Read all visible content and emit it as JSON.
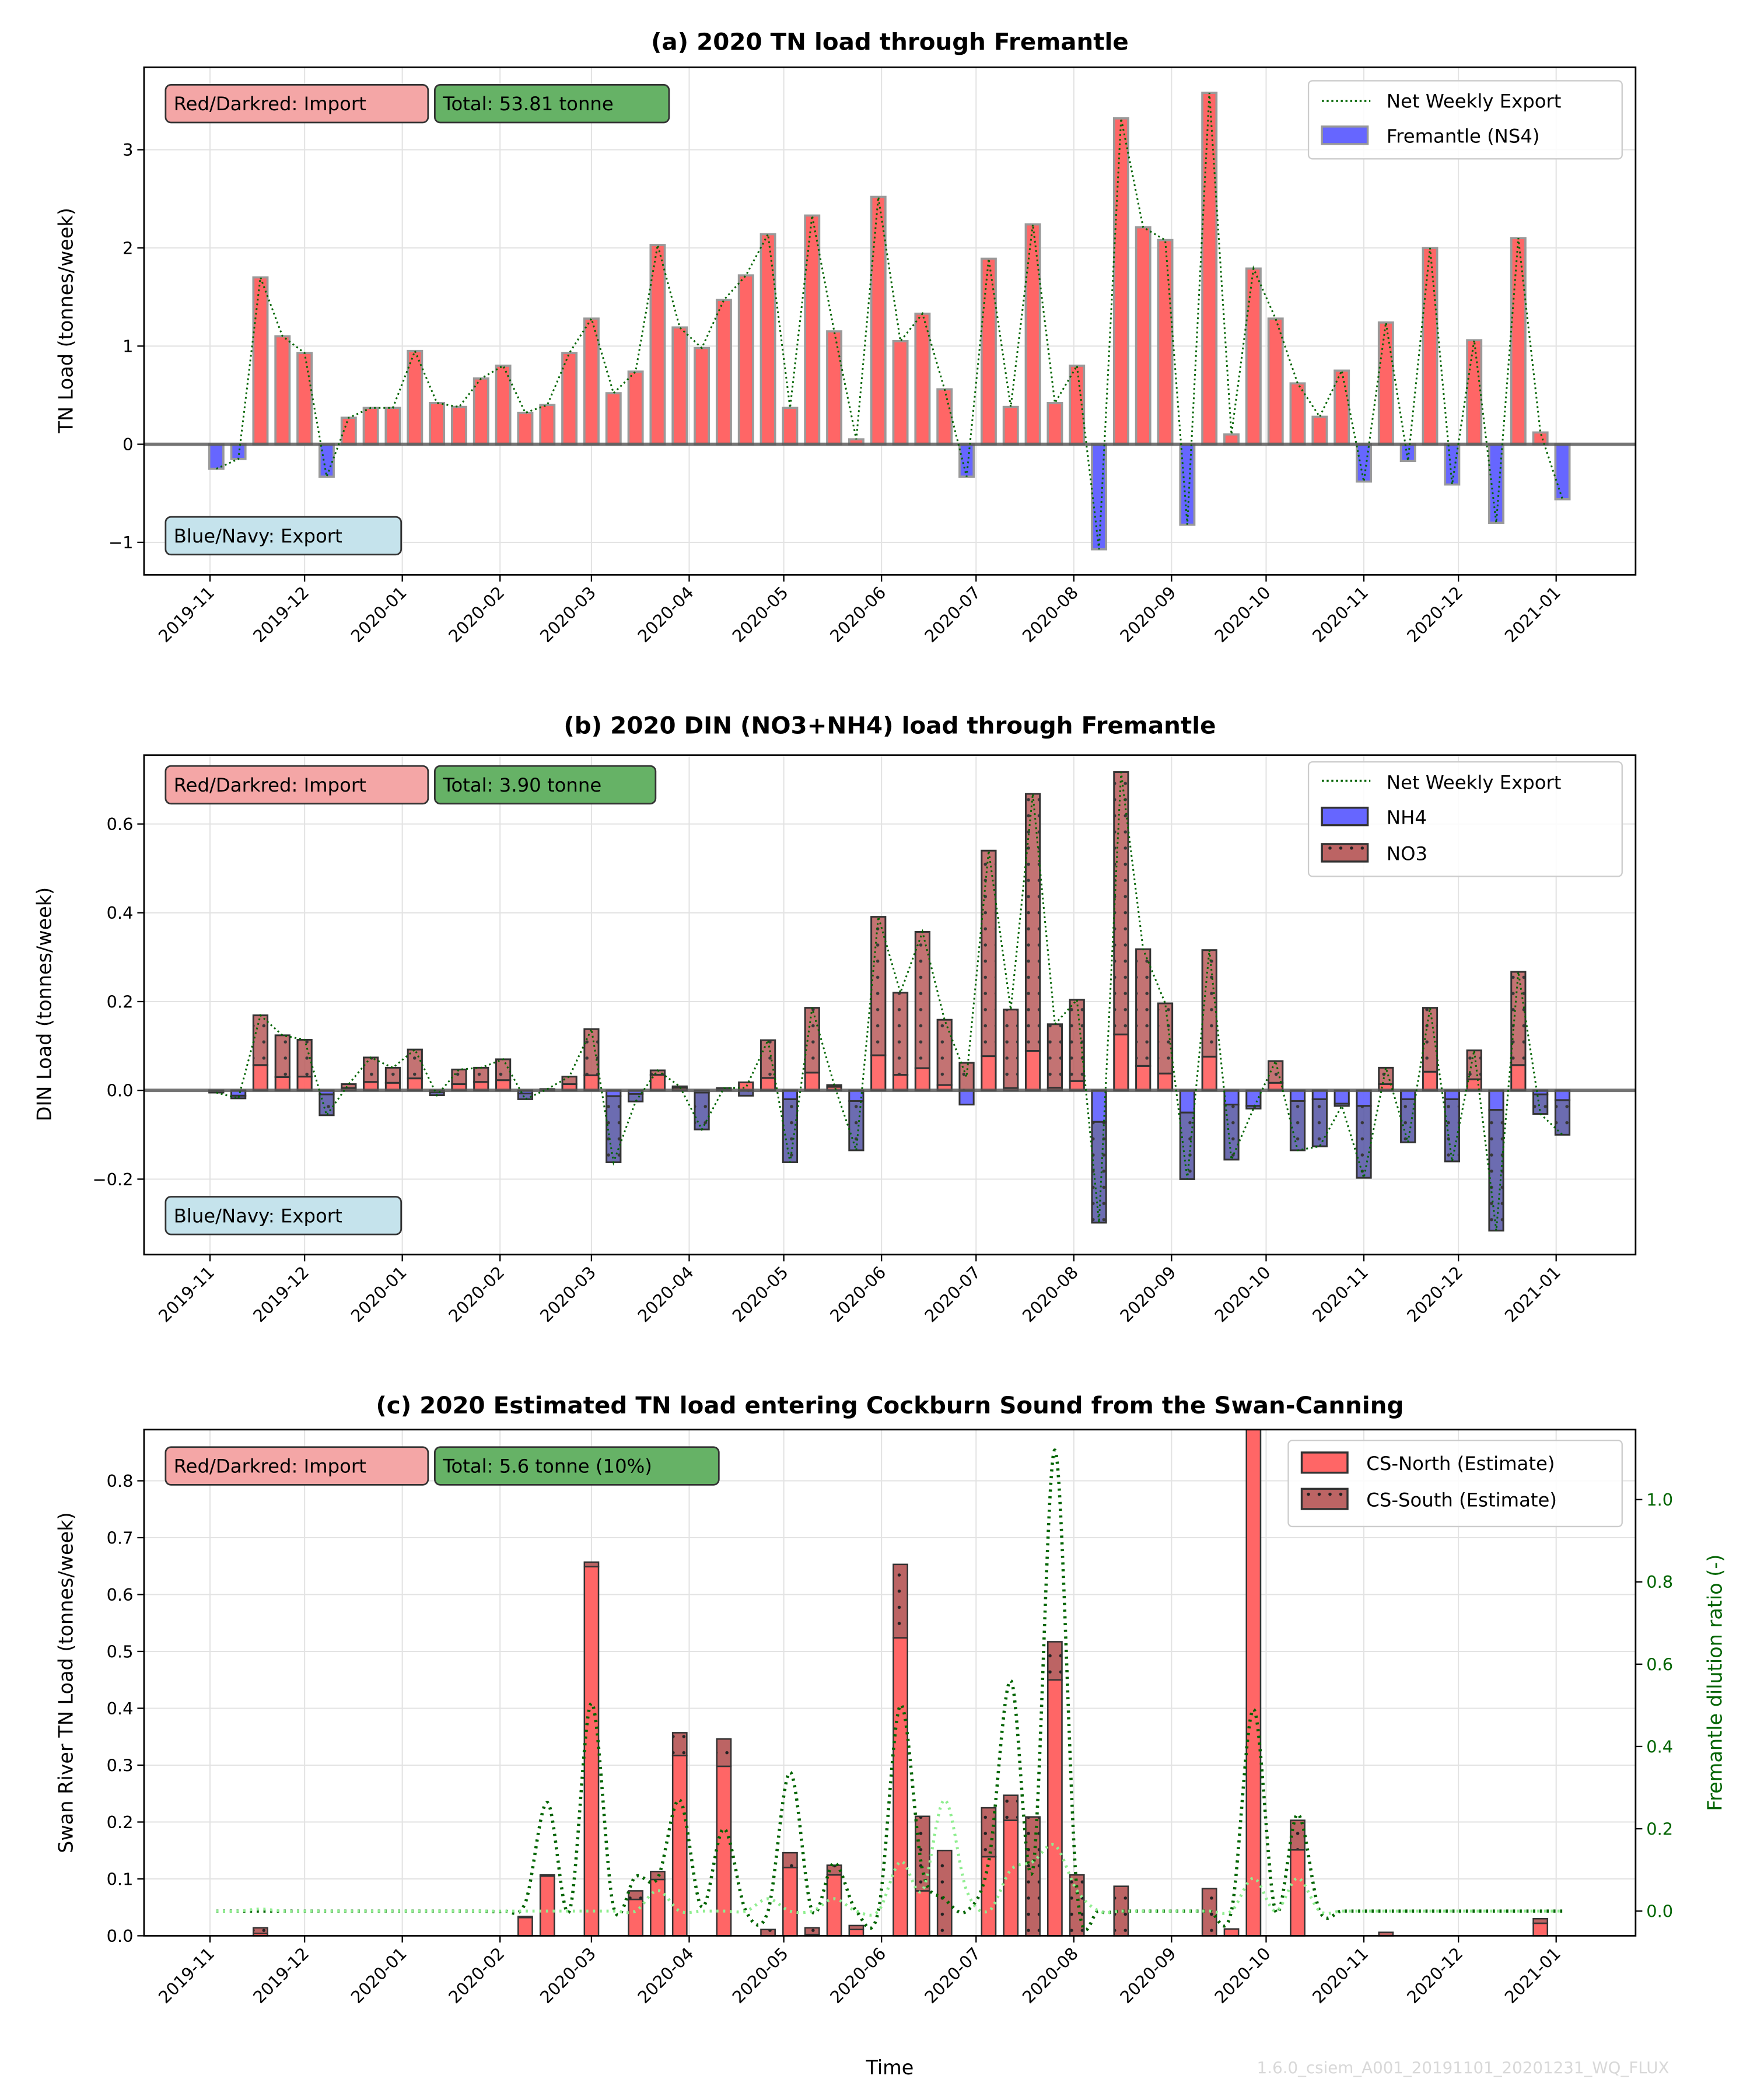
{
  "weeks": [
    "2019-11-03",
    "2019-11-10",
    "2019-11-17",
    "2019-11-24",
    "2019-12-01",
    "2019-12-08",
    "2019-12-15",
    "2019-12-22",
    "2019-12-29",
    "2020-01-05",
    "2020-01-12",
    "2020-01-19",
    "2020-01-26",
    "2020-02-02",
    "2020-02-09",
    "2020-02-16",
    "2020-02-23",
    "2020-03-01",
    "2020-03-08",
    "2020-03-15",
    "2020-03-22",
    "2020-03-29",
    "2020-04-05",
    "2020-04-12",
    "2020-04-19",
    "2020-04-26",
    "2020-05-03",
    "2020-05-10",
    "2020-05-17",
    "2020-05-24",
    "2020-05-31",
    "2020-06-07",
    "2020-06-14",
    "2020-06-21",
    "2020-06-28",
    "2020-07-05",
    "2020-07-12",
    "2020-07-19",
    "2020-07-26",
    "2020-08-02",
    "2020-08-09",
    "2020-08-16",
    "2020-08-23",
    "2020-08-30",
    "2020-09-06",
    "2020-09-13",
    "2020-09-20",
    "2020-09-27",
    "2020-10-04",
    "2020-10-11",
    "2020-10-18",
    "2020-10-25",
    "2020-11-01",
    "2020-11-08",
    "2020-11-15",
    "2020-11-22",
    "2020-11-29",
    "2020-12-06",
    "2020-12-13",
    "2020-12-20",
    "2020-12-27",
    "2021-01-03"
  ],
  "x_ticks": [
    "2019-11",
    "2019-12",
    "2020-01",
    "2020-02",
    "2020-03",
    "2020-04",
    "2020-05",
    "2020-06",
    "2020-07",
    "2020-08",
    "2020-09",
    "2020-10",
    "2020-11",
    "2020-12",
    "2021-01"
  ],
  "xlim": [
    "2019-10-11",
    "2021-01-28"
  ],
  "colors": {
    "import": "#ff6666",
    "export": "#6666ff",
    "no3_import": "#bc6464",
    "no3_export": "#5c5ca8",
    "line": "#006400",
    "light_line": "#90ee90",
    "import_box": "#f4a6a6",
    "total_box": "#66b266",
    "export_box": "#c5e3ec"
  },
  "chart_data": [
    {
      "type": "bar",
      "title": "(a) 2020 TN load through Fremantle",
      "ylabel": "TN Load (tonnes/week)",
      "ylim": [
        -1.33,
        3.84
      ],
      "yticks": [
        -1,
        0,
        1,
        2,
        3
      ],
      "ytick_labels": [
        "−1",
        "0",
        "1",
        "2",
        "3"
      ],
      "grid": true,
      "legend_position": "top-right",
      "annotations": {
        "import": "Red/Darkred: Import",
        "total": "Total: 53.81 tonne",
        "export": "Blue/Navy: Export"
      },
      "line_name": "Net Weekly Export",
      "series": [
        {
          "name": "Fremantle (NS4)",
          "values": [
            -0.25,
            -0.15,
            1.7,
            1.1,
            0.93,
            -0.33,
            0.27,
            0.37,
            0.37,
            0.95,
            0.42,
            0.38,
            0.67,
            0.8,
            0.32,
            0.4,
            0.93,
            1.28,
            0.52,
            0.74,
            2.03,
            1.19,
            0.98,
            1.47,
            1.72,
            2.14,
            0.37,
            2.33,
            1.15,
            0.05,
            2.52,
            1.05,
            1.33,
            0.56,
            -0.33,
            1.89,
            0.38,
            2.24,
            0.42,
            0.8,
            -1.07,
            3.32,
            2.21,
            2.08,
            -0.82,
            3.58,
            0.1,
            1.79,
            1.28,
            0.62,
            0.28,
            0.75,
            -0.38,
            1.24,
            -0.17,
            2.0,
            -0.41,
            1.06,
            -0.8,
            2.1,
            0.12,
            -0.56
          ]
        }
      ]
    },
    {
      "type": "bar",
      "stacked": true,
      "title": "(b) 2020 DIN (NO3+NH4) load through Fremantle",
      "ylabel": "DIN Load (tonnes/week)",
      "ylim": [
        -0.37,
        0.755
      ],
      "yticks": [
        -0.2,
        0,
        0.2,
        0.4,
        0.6
      ],
      "ytick_labels": [
        "−0.2",
        "0.0",
        "0.2",
        "0.4",
        "0.6"
      ],
      "grid": true,
      "legend_position": "top-right",
      "annotations": {
        "import": "Red/Darkred: Import",
        "total": "Total: 3.90 tonne",
        "export": "Blue/Navy: Export"
      },
      "line_name": "Net Weekly Export",
      "series": [
        {
          "name": "NH4",
          "values": [
            -0.003,
            -0.012,
            0.057,
            0.03,
            0.031,
            -0.009,
            0.005,
            0.019,
            0.017,
            0.027,
            -0.004,
            0.014,
            0.019,
            0.023,
            -0.007,
            0.001,
            0.014,
            0.034,
            -0.013,
            -0.008,
            0.035,
            0.006,
            -0.005,
            0.003,
            0.018,
            0.028,
            -0.02,
            0.04,
            0.008,
            -0.024,
            0.079,
            0.035,
            0.05,
            0.012,
            -0.032,
            0.077,
            0.005,
            0.089,
            0.006,
            0.021,
            -0.071,
            0.126,
            0.055,
            0.038,
            -0.05,
            0.076,
            -0.032,
            -0.035,
            0.017,
            -0.024,
            -0.02,
            -0.03,
            -0.035,
            0.014,
            -0.02,
            0.042,
            -0.02,
            0.025,
            -0.044,
            0.057,
            -0.009,
            -0.022
          ]
        },
        {
          "name": "NO3",
          "values": [
            -0.002,
            -0.006,
            0.112,
            0.094,
            0.083,
            -0.047,
            0.009,
            0.055,
            0.034,
            0.065,
            -0.007,
            0.033,
            0.032,
            0.047,
            -0.013,
            0.002,
            0.017,
            0.104,
            -0.149,
            -0.017,
            0.01,
            0.003,
            -0.083,
            0.002,
            -0.012,
            0.085,
            -0.142,
            0.146,
            0.004,
            -0.111,
            0.312,
            0.185,
            0.307,
            0.147,
            0.062,
            0.463,
            0.177,
            0.579,
            0.143,
            0.183,
            -0.227,
            0.591,
            0.263,
            0.158,
            -0.15,
            0.24,
            -0.124,
            -0.006,
            0.049,
            -0.111,
            -0.106,
            -0.005,
            -0.162,
            0.037,
            -0.097,
            0.144,
            -0.14,
            0.065,
            -0.272,
            0.21,
            -0.044,
            -0.078
          ]
        }
      ]
    },
    {
      "type": "bar",
      "stacked": true,
      "title": "(c) 2020 Estimated TN load entering Cockburn Sound from the Swan-Canning",
      "xlabel": "Time",
      "ylabel": "Swan River TN Load (tonnes/week)",
      "ylim": [
        0,
        0.89
      ],
      "yticks": [
        0,
        0.1,
        0.2,
        0.3,
        0.4,
        0.5,
        0.6,
        0.7,
        0.8
      ],
      "ytick_labels": [
        "0.0",
        "0.1",
        "0.2",
        "0.3",
        "0.4",
        "0.5",
        "0.6",
        "0.7",
        "0.8"
      ],
      "grid": true,
      "legend_position": "top-right",
      "annotations": {
        "import": "Red/Darkred: Import",
        "total": "Total: 5.6 tonne (10%)"
      },
      "series": [
        {
          "name": "CS-North (Estimate)",
          "values": [
            0,
            0,
            0.004,
            0,
            0,
            0,
            0,
            0,
            0,
            0,
            0,
            0,
            0,
            0,
            0.032,
            0.105,
            0,
            0.649,
            0,
            0.064,
            0.099,
            0.317,
            0,
            0.298,
            0,
            0,
            0.12,
            0.002,
            0.107,
            0.011,
            0,
            0.524,
            0.079,
            0,
            0,
            0.139,
            0.203,
            0,
            0.45,
            0,
            0,
            0,
            0,
            0,
            0,
            0,
            0.012,
            0.95,
            0,
            0.151,
            0,
            0,
            0,
            0,
            0,
            0,
            0,
            0,
            0,
            0,
            0.022,
            0
          ]
        },
        {
          "name": "CS-South (Estimate)",
          "values": [
            0,
            0,
            0.01,
            0,
            0,
            0,
            0,
            0,
            0,
            0,
            0,
            0,
            0,
            0,
            0.002,
            0.002,
            0,
            0.008,
            0,
            0.015,
            0.014,
            0.04,
            0,
            0.048,
            0,
            0.011,
            0.026,
            0.012,
            0.017,
            0.007,
            0,
            0.129,
            0.131,
            0.15,
            0,
            0.086,
            0.044,
            0.209,
            0.067,
            0.107,
            0,
            0.087,
            0,
            0,
            0,
            0.083,
            0,
            0,
            0,
            0.052,
            0,
            0,
            0,
            0.006,
            0,
            0,
            0,
            0,
            0,
            0,
            0.008,
            0
          ]
        }
      ],
      "right_axis": {
        "label": "Fremantle dilution ratio (-)",
        "ylim": [
          -0.06,
          1.17
        ],
        "yticks": [
          0,
          0.2,
          0.4,
          0.6,
          0.8,
          1.0
        ],
        "ytick_labels": [
          "0.0",
          "0.2",
          "0.4",
          "0.6",
          "0.8",
          "1.0"
        ],
        "lines": [
          {
            "color": "#006400",
            "values": [
              0,
              0,
              0,
              0,
              0,
              0,
              0,
              0,
              0,
              0,
              0,
              0,
              0,
              0,
              0.02,
              0.264,
              0,
              0.505,
              0.01,
              0.084,
              0.08,
              0.27,
              0.01,
              0.2,
              0,
              0,
              0.337,
              0,
              0.117,
              0,
              0,
              0.5,
              0.1,
              0.03,
              0,
              0.12,
              0.56,
              0.1,
              1.12,
              0.05,
              0,
              0,
              0,
              0,
              0,
              0,
              0,
              0.49,
              0,
              0.235,
              0,
              0,
              0,
              0,
              0,
              0,
              0,
              0,
              0,
              0,
              0,
              0
            ]
          },
          {
            "color": "#90ee90",
            "values": [
              0,
              0,
              0.005,
              0,
              0,
              0,
              0,
              0,
              0,
              0,
              0,
              0,
              0,
              0,
              0,
              0,
              0,
              0,
              0,
              0,
              0.05,
              0,
              0,
              0,
              0,
              0.03,
              0,
              0,
              0.03,
              0,
              0,
              0.12,
              0.05,
              0.27,
              0.05,
              0,
              0.1,
              0.12,
              0.16,
              0.05,
              0,
              0,
              0,
              0,
              0,
              0,
              0,
              0.08,
              0,
              0.08,
              0,
              0,
              0,
              0,
              0,
              0,
              0,
              0,
              0,
              0,
              0,
              0
            ]
          }
        ]
      }
    }
  ],
  "watermark": "1.6.0_csiem_A001_20191101_20201231_WQ_FLUX"
}
